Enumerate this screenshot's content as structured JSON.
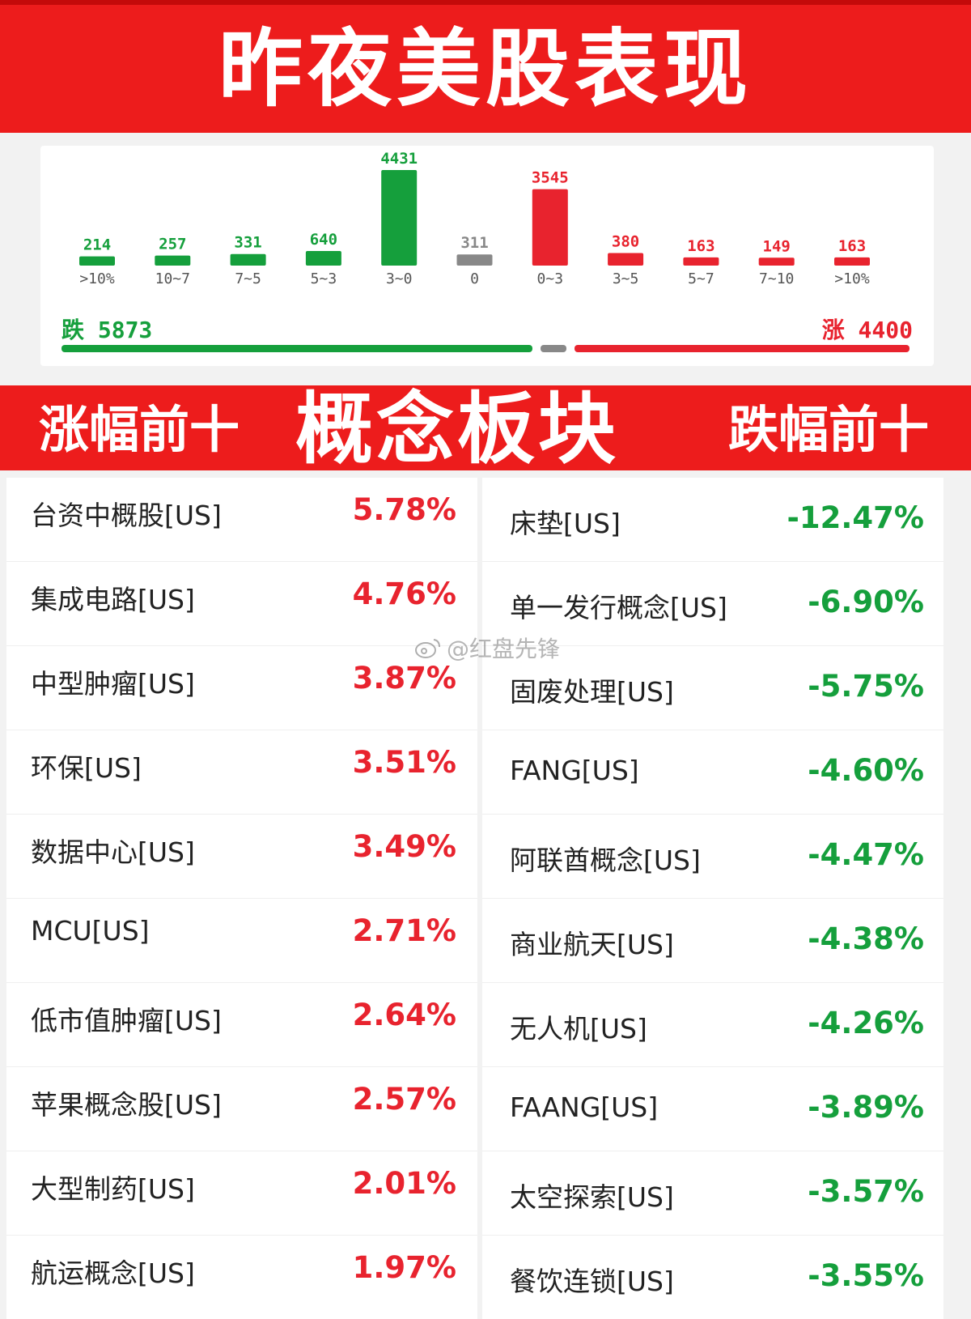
{
  "header": {
    "title": "昨夜美股表现"
  },
  "distribution": {
    "chart_data": {
      "type": "bar",
      "categories": [
        ">10%",
        "10~7",
        "7~5",
        "5~3",
        "3~0",
        "0",
        "0~3",
        "3~5",
        "5~7",
        "7~10",
        ">10%"
      ],
      "values": [
        214,
        257,
        331,
        640,
        4431,
        311,
        3545,
        380,
        163,
        149,
        163
      ],
      "colors": [
        "#159f3c",
        "#159f3c",
        "#159f3c",
        "#159f3c",
        "#159f3c",
        "#888888",
        "#e8232e",
        "#e8232e",
        "#e8232e",
        "#e8232e",
        "#e8232e"
      ],
      "title": "",
      "xlabel": "",
      "ylabel": ""
    },
    "summary": {
      "down_text": "跌 5873",
      "up_text": "涨 4400",
      "down_color": "#159f3c",
      "up_color": "#e8232e"
    }
  },
  "section": {
    "left_title": "涨幅前十",
    "center_title": "概念板块",
    "right_title": "跌幅前十"
  },
  "gainers": [
    {
      "name": "台资中概股[US]",
      "pct": "5.78%"
    },
    {
      "name": "集成电路[US]",
      "pct": "4.76%"
    },
    {
      "name": "中型肿瘤[US]",
      "pct": "3.87%"
    },
    {
      "name": "环保[US]",
      "pct": "3.51%"
    },
    {
      "name": "数据中心[US]",
      "pct": "3.49%"
    },
    {
      "name": "MCU[US]",
      "pct": "2.71%"
    },
    {
      "name": "低市值肿瘤[US]",
      "pct": "2.64%"
    },
    {
      "name": "苹果概念股[US]",
      "pct": "2.57%"
    },
    {
      "name": "大型制药[US]",
      "pct": "2.01%"
    },
    {
      "name": "航运概念[US]",
      "pct": "1.97%"
    }
  ],
  "losers": [
    {
      "name": "床垫[US]",
      "pct": "-12.47%"
    },
    {
      "name": "单一发行概念[US]",
      "pct": "-6.90%"
    },
    {
      "name": "固废处理[US]",
      "pct": "-5.75%"
    },
    {
      "name": "FANG[US]",
      "pct": "-4.60%"
    },
    {
      "name": "阿联酋概念[US]",
      "pct": "-4.47%"
    },
    {
      "name": "商业航天[US]",
      "pct": "-4.38%"
    },
    {
      "name": "无人机[US]",
      "pct": "-4.26%"
    },
    {
      "name": "FAANG[US]",
      "pct": "-3.89%"
    },
    {
      "name": "太空探索[US]",
      "pct": "-3.57%"
    },
    {
      "name": "餐饮连锁[US]",
      "pct": "-3.55%"
    }
  ],
  "watermark": {
    "text": "@红盘先锋",
    "icon": "weibo-icon"
  }
}
